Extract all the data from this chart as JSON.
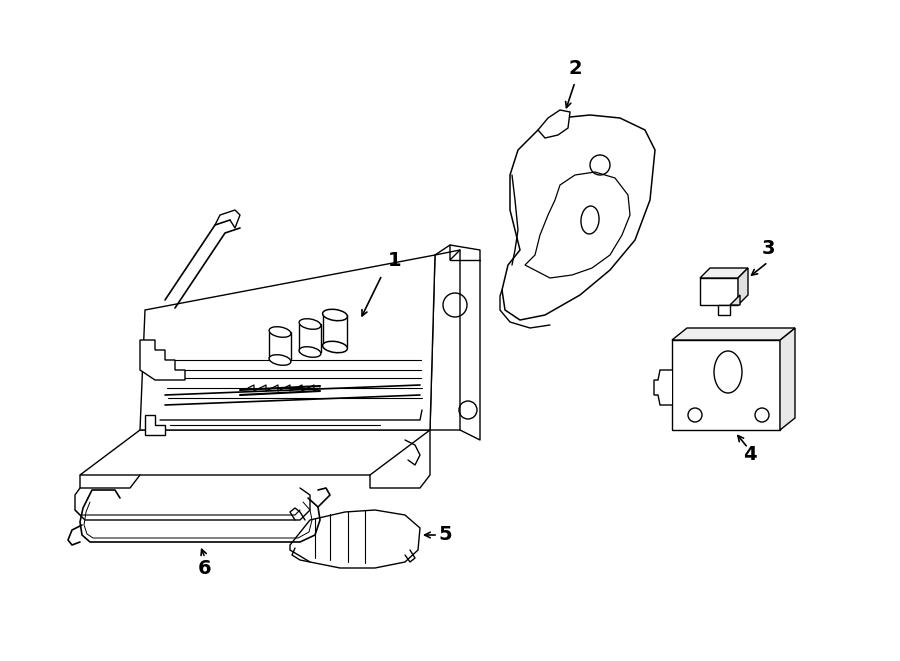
{
  "bg_color": "#ffffff",
  "line_color": "#000000",
  "lw": 1.0,
  "fig_width": 9.0,
  "fig_height": 6.61,
  "dpi": 100
}
